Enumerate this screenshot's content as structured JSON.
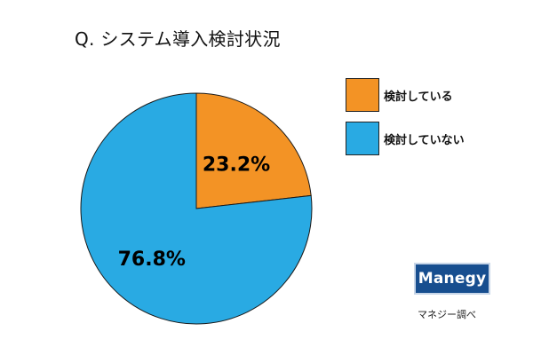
{
  "chart_data": {
    "type": "pie",
    "title": "Q. システム導入検討状況",
    "categories": [
      "検討している",
      "検討していない"
    ],
    "values": [
      23.2,
      76.8
    ],
    "value_labels": [
      "23.2%",
      "76.8%"
    ],
    "colors": [
      "#f39325",
      "#29aae3"
    ],
    "start_angle": "12 o'clock",
    "direction": "clockwise",
    "legend_position": "top-right"
  },
  "branding": {
    "logo_text": "Manegy",
    "caption": "マネジー調べ"
  }
}
